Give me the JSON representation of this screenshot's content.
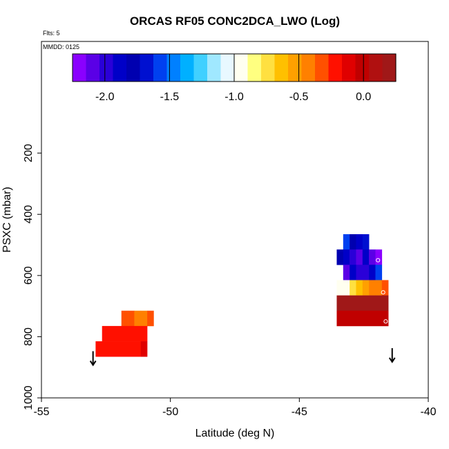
{
  "chart_data": {
    "type": "heatmap",
    "title": "ORCAS RF05 CONC2DCA_LWO (Log)",
    "flts_label": "Flts: 5",
    "mmdd_label": "MMDD: 0125",
    "xlabel": "Latitude (deg N)",
    "ylabel": "PSXC (mbar)",
    "xlim": [
      -55,
      -40
    ],
    "ylim": [
      1000,
      0
    ],
    "xticks": [
      "-55",
      "-50",
      "-45",
      "-40"
    ],
    "xtick_values": [
      -55,
      -50,
      -45,
      -40
    ],
    "yticks": [
      "200",
      "400",
      "600",
      "800",
      "1000"
    ],
    "ytick_values": [
      200,
      400,
      600,
      800,
      1000
    ],
    "colorbar": {
      "range": [
        -2.25,
        0.25
      ],
      "ticks": [
        "-2.0",
        "-1.5",
        "-1.0",
        "-0.5",
        "0.0"
      ],
      "tick_values": [
        -2.0,
        -1.5,
        -1.0,
        -0.5,
        0.0
      ],
      "colors": [
        "#8a00ff",
        "#5a00e6",
        "#2a00d8",
        "#0000c8",
        "#0000b0",
        "#0010d0",
        "#0040f0",
        "#0080ff",
        "#00b0ff",
        "#40d0ff",
        "#a0e8ff",
        "#e8f8ff",
        "#fffff0",
        "#ffff80",
        "#ffe040",
        "#ffc000",
        "#ffa000",
        "#ff8000",
        "#ff5000",
        "#ff1000",
        "#e00000",
        "#c00000",
        "#b01010",
        "#a01818"
      ]
    },
    "down_arrows": [
      {
        "lat": -53.0,
        "p": 870
      },
      {
        "lat": -41.4,
        "p": 860
      }
    ],
    "cells": [
      {
        "lat0": -51.9,
        "lat1": -51.65,
        "p0": 715,
        "p1": 765,
        "v": -0.3
      },
      {
        "lat0": -51.65,
        "lat1": -51.4,
        "p0": 715,
        "p1": 765,
        "v": -0.35
      },
      {
        "lat0": -51.4,
        "lat1": -51.15,
        "p0": 715,
        "p1": 765,
        "v": -0.4
      },
      {
        "lat0": -51.15,
        "lat1": -50.9,
        "p0": 715,
        "p1": 765,
        "v": -0.45
      },
      {
        "lat0": -50.9,
        "lat1": -50.65,
        "p0": 715,
        "p1": 765,
        "v": -0.28
      },
      {
        "lat0": -52.65,
        "lat1": -50.9,
        "p0": 765,
        "p1": 815,
        "v": -0.22
      },
      {
        "lat0": -52.9,
        "lat1": -51.15,
        "p0": 815,
        "p1": 865,
        "v": -0.2
      },
      {
        "lat0": -51.15,
        "lat1": -50.9,
        "p0": 815,
        "p1": 865,
        "v": -0.15
      },
      {
        "lat0": -43.3,
        "lat1": -43.05,
        "p0": 465,
        "p1": 515,
        "v": -1.6
      },
      {
        "lat0": -43.05,
        "lat1": -42.8,
        "p0": 465,
        "p1": 515,
        "v": -1.75
      },
      {
        "lat0": -42.8,
        "lat1": -42.55,
        "p0": 465,
        "p1": 515,
        "v": -1.85
      },
      {
        "lat0": -42.55,
        "lat1": -42.3,
        "p0": 465,
        "p1": 515,
        "v": -1.7
      },
      {
        "lat0": -43.55,
        "lat1": -43.3,
        "p0": 515,
        "p1": 565,
        "v": -1.75
      },
      {
        "lat0": -43.3,
        "lat1": -43.05,
        "p0": 515,
        "p1": 565,
        "v": -1.85
      },
      {
        "lat0": -43.05,
        "lat1": -42.8,
        "p0": 515,
        "p1": 565,
        "v": -1.95
      },
      {
        "lat0": -42.8,
        "lat1": -42.55,
        "p0": 515,
        "p1": 565,
        "v": -2.05
      },
      {
        "lat0": -42.55,
        "lat1": -42.3,
        "p0": 515,
        "p1": 565,
        "v": -1.9
      },
      {
        "lat0": -42.3,
        "lat1": -42.05,
        "p0": 515,
        "p1": 565,
        "v": -2.1
      },
      {
        "lat0": -42.05,
        "lat1": -41.8,
        "p0": 515,
        "p1": 565,
        "v": -2.2
      },
      {
        "lat0": -43.3,
        "lat1": -43.05,
        "p0": 565,
        "p1": 615,
        "v": -2.05
      },
      {
        "lat0": -43.05,
        "lat1": -42.8,
        "p0": 565,
        "p1": 615,
        "v": -1.85
      },
      {
        "lat0": -42.8,
        "lat1": -42.55,
        "p0": 565,
        "p1": 615,
        "v": -1.95
      },
      {
        "lat0": -42.55,
        "lat1": -42.3,
        "p0": 565,
        "p1": 615,
        "v": -2.0
      },
      {
        "lat0": -42.3,
        "lat1": -42.05,
        "p0": 565,
        "p1": 615,
        "v": -1.85
      },
      {
        "lat0": -42.05,
        "lat1": -41.8,
        "p0": 565,
        "p1": 615,
        "v": -1.6
      },
      {
        "lat0": -43.55,
        "lat1": -43.3,
        "p0": 615,
        "p1": 665,
        "v": -1.0
      },
      {
        "lat0": -43.3,
        "lat1": -43.05,
        "p0": 615,
        "p1": 665,
        "v": -0.9
      },
      {
        "lat0": -43.05,
        "lat1": -42.8,
        "p0": 615,
        "p1": 665,
        "v": -0.75
      },
      {
        "lat0": -42.8,
        "lat1": -42.55,
        "p0": 615,
        "p1": 665,
        "v": -0.6
      },
      {
        "lat0": -42.55,
        "lat1": -42.3,
        "p0": 615,
        "p1": 665,
        "v": -0.5
      },
      {
        "lat0": -42.3,
        "lat1": -42.05,
        "p0": 615,
        "p1": 665,
        "v": -0.45
      },
      {
        "lat0": -42.05,
        "lat1": -41.8,
        "p0": 615,
        "p1": 665,
        "v": -0.38
      },
      {
        "lat0": -41.8,
        "lat1": -41.55,
        "p0": 615,
        "p1": 665,
        "v": -0.32
      },
      {
        "lat0": -43.55,
        "lat1": -41.55,
        "p0": 665,
        "p1": 715,
        "v": 0.22
      },
      {
        "lat0": -43.55,
        "lat1": -41.55,
        "p0": 715,
        "p1": 765,
        "v": 0.03
      }
    ],
    "markers": [
      {
        "lat": -41.95,
        "p": 550
      },
      {
        "lat": -41.75,
        "p": 655
      },
      {
        "lat": -41.65,
        "p": 750
      }
    ]
  }
}
